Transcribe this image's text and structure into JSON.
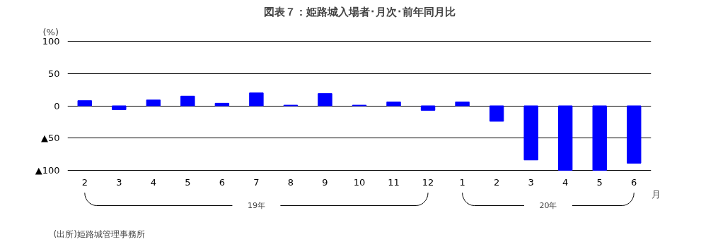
{
  "chart_data": {
    "type": "bar",
    "title": "図表７：姫路城入場者･月次･前年同月比",
    "ylabel": "(%)",
    "xlabel": "月",
    "categories": [
      "2",
      "3",
      "4",
      "5",
      "6",
      "7",
      "8",
      "9",
      "10",
      "11",
      "12",
      "1",
      "2",
      "3",
      "4",
      "5",
      "6"
    ],
    "values": [
      8,
      -6,
      9,
      15,
      4,
      20,
      1,
      19,
      1,
      6,
      -7,
      6,
      -24,
      -84,
      -100,
      -100,
      -89
    ],
    "color": "#0000ff",
    "ylim": [
      -100,
      100
    ],
    "yticks": [
      100,
      50,
      0,
      {
        "value": -50,
        "label": "▲50"
      },
      {
        "value": -100,
        "label": "▲100"
      }
    ],
    "grid": "y",
    "annotations": [
      "19年",
      "20年",
      "(出所)姫路城管理事務所"
    ]
  }
}
